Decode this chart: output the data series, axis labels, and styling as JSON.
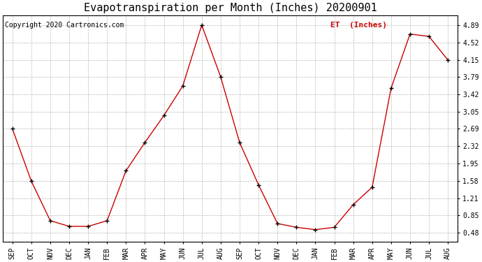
{
  "title": "Evapotranspiration per Month (Inches) 20200901",
  "copyright_text": "Copyright 2020 Cartronics.com",
  "legend_label": "ET  (Inches)",
  "months": [
    "SEP",
    "OCT",
    "NOV",
    "DEC",
    "JAN",
    "FEB",
    "MAR",
    "APR",
    "MAY",
    "JUN",
    "JUL",
    "AUG",
    "SEP",
    "OCT",
    "NOV",
    "DEC",
    "JAN",
    "FEB",
    "MAR",
    "APR",
    "MAY",
    "JUN",
    "JUL",
    "AUG"
  ],
  "values": [
    2.69,
    1.58,
    0.74,
    0.62,
    0.62,
    0.74,
    1.8,
    2.4,
    2.97,
    3.6,
    4.89,
    3.79,
    2.4,
    1.5,
    0.68,
    0.6,
    0.55,
    0.6,
    1.08,
    1.45,
    3.55,
    4.7,
    4.65,
    4.15
  ],
  "line_color": "#cc0000",
  "marker_color": "#000000",
  "yticks": [
    0.48,
    0.85,
    1.21,
    1.58,
    1.95,
    2.32,
    2.69,
    3.05,
    3.42,
    3.79,
    4.15,
    4.52,
    4.89
  ],
  "ylim": [
    0.3,
    5.1
  ],
  "background_color": "#ffffff",
  "grid_color": "#888888",
  "title_fontsize": 11,
  "copyright_fontsize": 7,
  "legend_fontsize": 8,
  "tick_fontsize": 7,
  "legend_color": "#cc0000",
  "figwidth": 6.9,
  "figheight": 3.75,
  "dpi": 100
}
